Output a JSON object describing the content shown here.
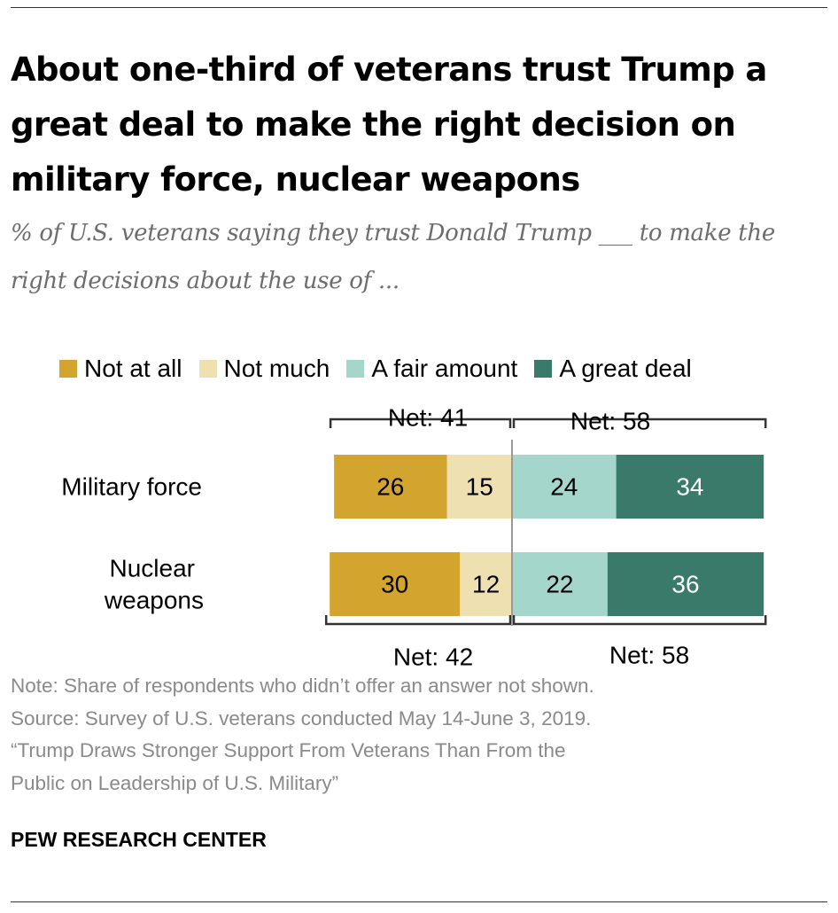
{
  "title": "About one-third of veterans trust Trump a great deal to make the right decision on military force, nuclear weapons",
  "subtitle": "% of U.S. veterans saying they trust Donald Trump ___ to make the right decisions about the use of ...",
  "legend": [
    {
      "label": "Not at all",
      "color": "#d4a52e"
    },
    {
      "label": "Not much",
      "color": "#efe0b2"
    },
    {
      "label": "A fair amount",
      "color": "#a5d6cc"
    },
    {
      "label": "A great deal",
      "color": "#3a7a6b"
    }
  ],
  "chart_data": {
    "type": "bar",
    "orientation": "horizontal",
    "stacking": "diverging",
    "categories": [
      "Military force",
      "Nuclear weapons"
    ],
    "series": [
      {
        "name": "Not at all",
        "values": [
          26,
          30
        ],
        "color": "#d4a52e"
      },
      {
        "name": "Not much",
        "values": [
          15,
          12
        ],
        "color": "#efe0b2"
      },
      {
        "name": "A fair amount",
        "values": [
          24,
          22
        ],
        "color": "#a5d6cc"
      },
      {
        "name": "A great deal",
        "values": [
          34,
          36
        ],
        "color": "#3a7a6b"
      }
    ],
    "nets": {
      "distrust": [
        {
          "label": "Net: 41",
          "value": 41
        },
        {
          "label": "Net: 42",
          "value": 42
        }
      ],
      "trust": [
        {
          "label": "Net: 58",
          "value": 58
        },
        {
          "label": "Net: 58",
          "value": 58
        }
      ]
    },
    "legend_position": "top"
  },
  "notes": [
    "Note: Share of respondents who didn’t offer an answer not shown.",
    "Source: Survey of U.S. veterans conducted May 14-June 3, 2019.",
    "“Trump Draws Stronger Support From Veterans Than From the",
    "Public on Leadership of U.S. Military”"
  ],
  "footer": "PEW RESEARCH CENTER"
}
